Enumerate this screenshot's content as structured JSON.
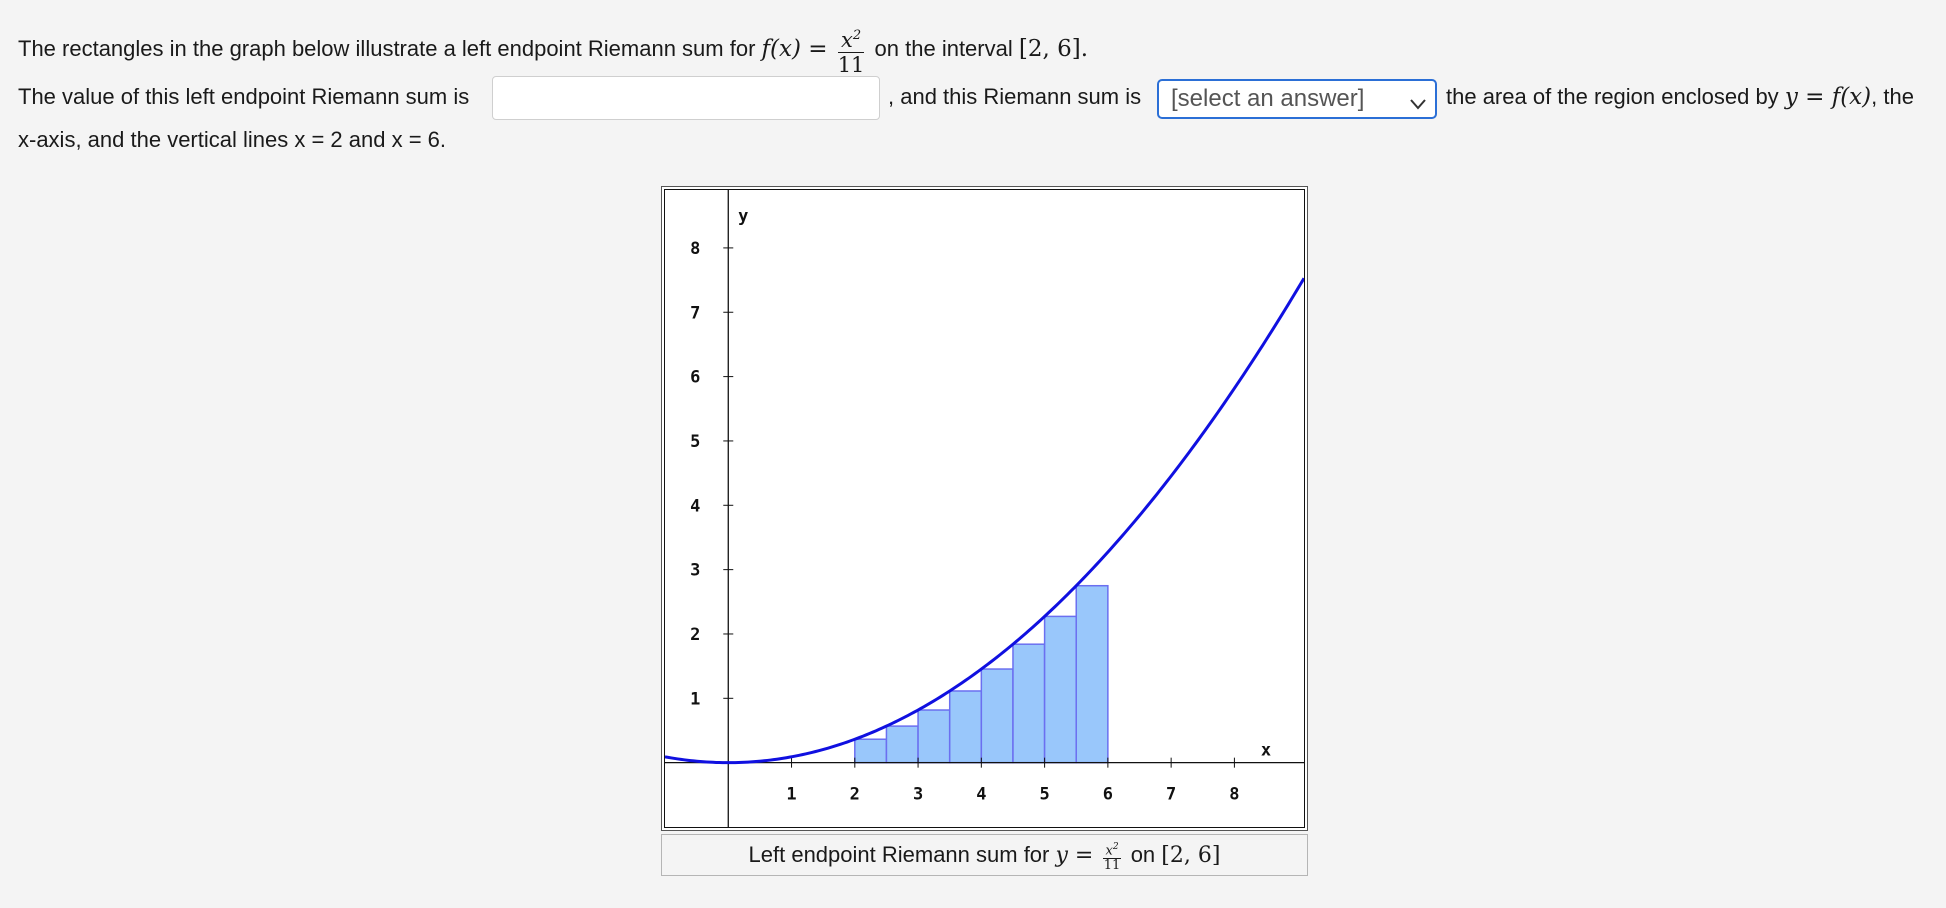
{
  "question": {
    "line1_prefix": "The rectangles in the graph below illustrate a left endpoint Riemann sum for",
    "fx_lhs": "f(x) =",
    "fx_num": "x2",
    "fx_den": "11",
    "line1_mid": "on the interval",
    "interval": "[2, 6].",
    "line2_prefix": "The value of this left endpoint Riemann sum is",
    "line2_mid": ", and this Riemann sum is",
    "line2_suffix": "the area of the region enclosed by",
    "region_expr": "y = f(x)",
    "line2_end": ", the",
    "line3": "x-axis, and the vertical lines x = 2 and x = 6."
  },
  "answer_input": {
    "value": "",
    "placeholder": ""
  },
  "select": {
    "selected": "[select an answer]"
  },
  "caption": {
    "prefix": "Left endpoint Riemann sum for",
    "y_eq": "y =",
    "num": "x2",
    "den": "11",
    "on": "on",
    "interval": "[2, 6]"
  },
  "chart_data": {
    "type": "line",
    "function": "x^2/11",
    "interval": [
      2,
      6
    ],
    "n_rectangles": 8,
    "rectangles": [
      {
        "x": 2.0,
        "height": 0.364
      },
      {
        "x": 2.5,
        "height": 0.568
      },
      {
        "x": 3.0,
        "height": 0.818
      },
      {
        "x": 3.5,
        "height": 1.114
      },
      {
        "x": 4.0,
        "height": 1.455
      },
      {
        "x": 4.5,
        "height": 1.841
      },
      {
        "x": 5.0,
        "height": 2.273
      },
      {
        "x": 5.5,
        "height": 2.75
      }
    ],
    "xlabel": "x",
    "ylabel": "y",
    "x_ticks": [
      "1",
      "2",
      "3",
      "4",
      "5",
      "6",
      "7",
      "8"
    ],
    "y_ticks": [
      "1",
      "2",
      "3",
      "4",
      "5",
      "6",
      "7",
      "8"
    ],
    "xlim": [
      -1,
      9.1
    ],
    "ylim": [
      -1,
      8.9
    ],
    "curve_color": "#1010e0",
    "rect_fill": "#99c7fb",
    "rect_stroke": "#6b6ff0"
  }
}
